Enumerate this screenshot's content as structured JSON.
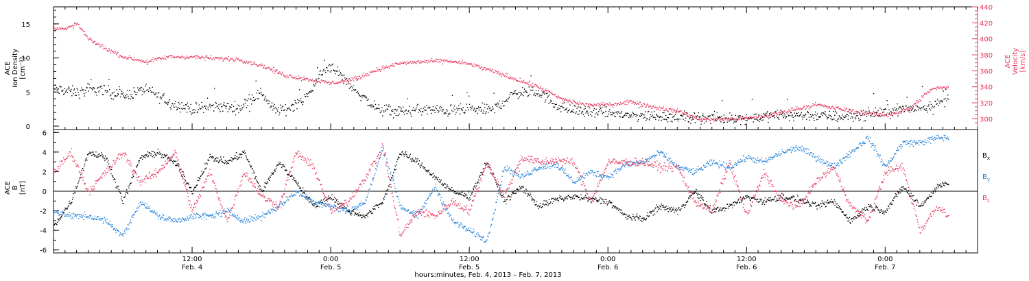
{
  "chart_data": [
    {
      "type": "scatter",
      "panel": "top",
      "ylabel_lines": [
        "ACE",
        "Ion Density",
        "[cm⁻³]"
      ],
      "ylabel_right_lines": [
        "ACE",
        "Velocity",
        "[km/s]"
      ],
      "xlim_hours": [
        0,
        80
      ],
      "ylim_left": [
        0,
        17.5
      ],
      "ylim_right": [
        290,
        440
      ],
      "yticks_left": [
        0,
        5,
        10,
        15
      ],
      "yticks_right": [
        300,
        320,
        340,
        360,
        380,
        400,
        420,
        440
      ],
      "colors": {
        "density": "#000000",
        "velocity": "#e8365d"
      },
      "series": [
        {
          "axis": "left",
          "color": "#000000",
          "x": [
            0,
            2,
            4,
            6,
            8,
            10,
            12,
            14,
            16,
            18,
            19,
            20,
            22,
            23,
            24,
            26,
            28,
            30,
            32,
            34,
            36,
            38,
            40,
            42,
            44,
            46,
            48,
            50,
            52,
            54,
            56,
            58,
            60,
            62,
            64,
            66,
            68,
            70,
            72,
            74,
            76,
            77.5
          ],
          "y": [
            5.5,
            5.0,
            5.5,
            4.5,
            5.5,
            3.5,
            2.5,
            3.0,
            2.7,
            5.0,
            2.5,
            2.4,
            4.5,
            7.5,
            9.0,
            5.5,
            2.5,
            2.2,
            2.5,
            2.3,
            2.5,
            2.5,
            5.0,
            5.0,
            2.6,
            2.2,
            2.0,
            1.6,
            1.6,
            1.4,
            1.3,
            1.2,
            1.2,
            1.5,
            1.7,
            1.6,
            1.4,
            1.7,
            2.2,
            2.6,
            3.0,
            4.0
          ],
          "jitter": 1.2
        },
        {
          "axis": "right",
          "color": "#e8365d",
          "x": [
            0,
            1,
            2,
            3,
            4,
            6,
            8,
            10,
            12,
            14,
            16,
            18,
            20,
            22,
            24,
            26,
            28,
            30,
            32,
            34,
            36,
            38,
            40,
            42,
            44,
            46,
            48,
            50,
            52,
            54,
            56,
            58,
            60,
            62,
            64,
            66,
            68,
            70,
            72,
            74,
            76,
            77.5
          ],
          "y": [
            415,
            412,
            420,
            400,
            392,
            378,
            372,
            378,
            378,
            376,
            375,
            367,
            355,
            350,
            345,
            350,
            362,
            370,
            372,
            373,
            369,
            360,
            350,
            340,
            325,
            318,
            318,
            322,
            315,
            310,
            300,
            300,
            301,
            305,
            312,
            318,
            313,
            308,
            305,
            312,
            338,
            340
          ],
          "jitter": 4
        }
      ]
    },
    {
      "type": "scatter",
      "panel": "bottom",
      "ylabel_lines": [
        "ACE",
        "B",
        "[nT]"
      ],
      "xlim_hours": [
        0,
        80
      ],
      "ylim": [
        -6.3,
        6.3
      ],
      "yticks": [
        -6,
        -4,
        -2,
        0,
        2,
        4,
        6
      ],
      "zero_line": true,
      "legend": [
        {
          "label": "B",
          "sub": "x",
          "color": "#000000"
        },
        {
          "label": "B",
          "sub": "y",
          "color": "#1e7fd8"
        },
        {
          "label": "B",
          "sub": "z",
          "color": "#e8365d"
        }
      ],
      "series": [
        {
          "name": "Bx",
          "color": "#000000",
          "x": [
            0,
            1.5,
            3,
            4.5,
            6,
            7.5,
            9,
            10.5,
            12,
            13.5,
            15,
            16.5,
            18,
            19.5,
            21,
            22.5,
            24,
            25.5,
            27,
            28.5,
            30,
            31.5,
            33,
            34.5,
            36,
            37.5,
            39,
            40.5,
            42,
            43.5,
            45,
            46.5,
            48,
            49.5,
            51,
            52.5,
            54,
            55.5,
            57,
            58.5,
            60,
            61.5,
            63,
            64.5,
            66,
            67.5,
            69,
            70.5,
            72,
            73.5,
            75,
            76.5,
            77.5
          ],
          "y": [
            -3.5,
            -1.0,
            4.0,
            3.5,
            -1.0,
            3.5,
            4.0,
            3.0,
            0.0,
            3.5,
            3.0,
            4.0,
            0.0,
            3.0,
            1.0,
            -1.5,
            -0.5,
            -2.0,
            -2.5,
            -1.0,
            4.0,
            3.0,
            1.5,
            0.0,
            -0.5,
            3.0,
            -1.0,
            0.5,
            -1.5,
            -0.8,
            -0.5,
            -0.8,
            -1.0,
            -2.5,
            -2.8,
            -1.5,
            -2.0,
            0.0,
            -2.0,
            -1.5,
            -0.5,
            -1.0,
            -0.5,
            -0.8,
            -1.5,
            -1.0,
            -3.0,
            -1.5,
            -2.0,
            0.5,
            -1.5,
            0.5,
            1.0
          ],
          "jitter": 0.5
        },
        {
          "name": "By",
          "color": "#1e7fd8",
          "x": [
            0,
            1.5,
            3,
            4.5,
            6,
            7.5,
            9,
            10.5,
            12,
            13.5,
            15,
            16.5,
            18,
            19.5,
            21,
            22.5,
            24,
            25.5,
            27,
            28.5,
            30,
            31.5,
            33,
            34.5,
            36,
            37.5,
            39,
            40.5,
            42,
            43.5,
            45,
            46.5,
            48,
            49.5,
            51,
            52.5,
            54,
            55.5,
            57,
            58.5,
            60,
            61.5,
            63,
            64.5,
            66,
            67.5,
            69,
            70.5,
            72,
            73.5,
            75,
            76.5,
            77.5
          ],
          "y": [
            -2.0,
            -2.5,
            -2.5,
            -3.0,
            -4.5,
            -1.0,
            -2.5,
            -3.0,
            -2.5,
            -2.5,
            -2.0,
            -3.0,
            -2.5,
            -1.5,
            0.0,
            -1.0,
            -1.5,
            -2.0,
            -1.0,
            4.5,
            -1.5,
            -2.5,
            0.5,
            -3.0,
            -4.0,
            -5.0,
            2.5,
            1.5,
            2.5,
            2.8,
            1.0,
            2.0,
            1.5,
            2.8,
            3.0,
            4.0,
            2.5,
            2.0,
            3.0,
            2.5,
            3.5,
            3.0,
            4.0,
            4.5,
            3.5,
            2.5,
            4.0,
            5.5,
            2.5,
            5.0,
            5.0,
            5.5,
            5.5
          ],
          "jitter": 0.5
        },
        {
          "name": "Bz",
          "color": "#e8365d",
          "x": [
            0,
            1.5,
            3,
            4.5,
            6,
            7.5,
            9,
            10.5,
            12,
            13.5,
            15,
            16.5,
            18,
            19.5,
            21,
            22.5,
            24,
            25.5,
            27,
            28.5,
            30,
            31.5,
            33,
            34.5,
            36,
            37.5,
            39,
            40.5,
            42,
            43.5,
            45,
            46.5,
            48,
            49.5,
            51,
            52.5,
            54,
            55.5,
            57,
            58.5,
            60,
            61.5,
            63,
            64.5,
            66,
            67.5,
            69,
            70.5,
            72,
            73.5,
            75,
            76.5,
            77.5
          ],
          "y": [
            2.0,
            4.0,
            0.0,
            2.0,
            4.0,
            1.0,
            2.0,
            4.0,
            -2.0,
            2.0,
            -3.0,
            2.0,
            -0.5,
            -1.5,
            4.0,
            2.5,
            -2.0,
            -1.0,
            1.5,
            4.5,
            -4.5,
            -2.0,
            -2.5,
            -1.0,
            -2.0,
            3.0,
            -0.5,
            3.5,
            3.0,
            3.2,
            3.0,
            -1.0,
            3.0,
            3.0,
            3.0,
            2.5,
            2.5,
            -1.0,
            -2.0,
            3.0,
            -2.5,
            2.0,
            -1.0,
            -1.5,
            1.0,
            2.5,
            -1.5,
            -3.0,
            2.0,
            2.5,
            -4.0,
            -1.5,
            -2.5
          ],
          "jitter": 0.6
        }
      ]
    }
  ],
  "x_axis": {
    "ticks": [
      {
        "hour": 12,
        "time": "12:00",
        "date": "Feb. 4"
      },
      {
        "hour": 24,
        "time": "0:00",
        "date": "Feb. 5"
      },
      {
        "hour": 36,
        "time": "12:00",
        "date": "Feb. 5"
      },
      {
        "hour": 48,
        "time": "0:00",
        "date": "Feb. 6"
      },
      {
        "hour": 60,
        "time": "12:00",
        "date": "Feb. 6"
      },
      {
        "hour": 72,
        "time": "0:00",
        "date": "Feb. 7"
      }
    ],
    "title": "hours:minutes, Feb.  4, 2013 – Feb.  7, 2013"
  }
}
